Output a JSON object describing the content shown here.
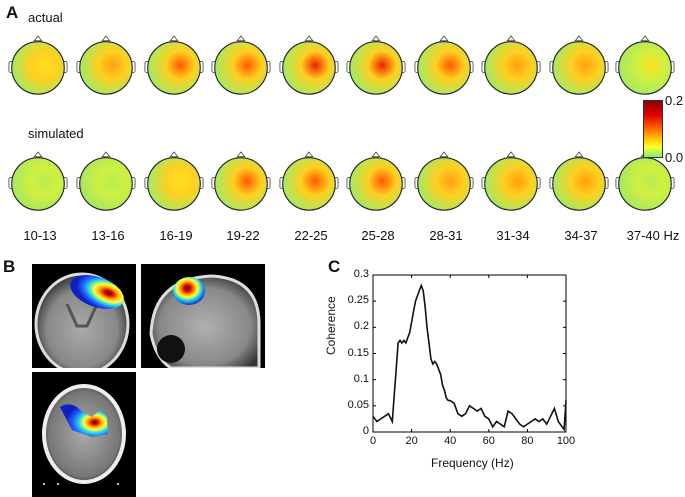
{
  "panels": {
    "A": {
      "letter": "A",
      "row_actual_label": "actual",
      "row_simulated_label": "simulated",
      "frequency_bands": [
        "10-13",
        "13-16",
        "16-19",
        "19-22",
        "22-25",
        "25-28",
        "28-31",
        "31-34",
        "34-37",
        "37-40 Hz"
      ],
      "colorbar": {
        "max_label": "0.2",
        "min_label": "0.0",
        "colors": [
          "#8b0000",
          "#e00000",
          "#ff6a00",
          "#ffd000",
          "#ffff30",
          "#7ff070"
        ]
      },
      "actual_intensity": [
        0.35,
        0.45,
        0.6,
        0.75,
        0.85,
        0.85,
        0.75,
        0.45,
        0.4,
        0.25
      ],
      "simulated_intensity": [
        0.1,
        0.1,
        0.35,
        0.65,
        0.7,
        0.65,
        0.45,
        0.45,
        0.45,
        0.15
      ]
    },
    "B": {
      "letter": "B",
      "views": [
        "coronal",
        "sagittal",
        "axial"
      ]
    },
    "C": {
      "letter": "C"
    }
  },
  "chart_data": [
    {
      "type": "heatmap",
      "title": "EEG coherence topographies (A)",
      "rows": [
        "actual",
        "simulated"
      ],
      "categories": [
        "10-13",
        "13-16",
        "16-19",
        "19-22",
        "22-25",
        "25-28",
        "28-31",
        "31-34",
        "34-37",
        "37-40 Hz"
      ],
      "colorbar_range": [
        0.0,
        0.2
      ]
    },
    {
      "type": "line",
      "title": "",
      "xlabel": "Frequency (Hz)",
      "ylabel": "Coherence",
      "xlim": [
        0,
        100
      ],
      "ylim": [
        0,
        0.3
      ],
      "xticks": [
        "0",
        "20",
        "40",
        "60",
        "80",
        "100"
      ],
      "yticks": [
        "0",
        "0.05",
        "0.1",
        "0.15",
        "0.2",
        "0.25",
        "0.3"
      ],
      "grid": false,
      "x": [
        0,
        2,
        4,
        6,
        8,
        10,
        11,
        12,
        13,
        14,
        15,
        16,
        17,
        18,
        19,
        20,
        21,
        22,
        23,
        24,
        25,
        26,
        27,
        28,
        29,
        30,
        31,
        32,
        33,
        34,
        35,
        36,
        37,
        38,
        39,
        40,
        42,
        44,
        46,
        48,
        50,
        52,
        54,
        56,
        58,
        60,
        62,
        64,
        66,
        68,
        70,
        72,
        74,
        76,
        78,
        80,
        82,
        84,
        86,
        88,
        90,
        92,
        94,
        96,
        98,
        99,
        100
      ],
      "values": [
        0.03,
        0.02,
        0.025,
        0.03,
        0.035,
        0.02,
        0.07,
        0.12,
        0.17,
        0.175,
        0.17,
        0.175,
        0.17,
        0.18,
        0.19,
        0.21,
        0.23,
        0.25,
        0.26,
        0.27,
        0.28,
        0.27,
        0.24,
        0.2,
        0.17,
        0.14,
        0.13,
        0.135,
        0.13,
        0.12,
        0.11,
        0.09,
        0.08,
        0.065,
        0.06,
        0.06,
        0.055,
        0.035,
        0.03,
        0.035,
        0.05,
        0.045,
        0.04,
        0.045,
        0.03,
        0.025,
        0.01,
        0.02,
        0.015,
        0.01,
        0.04,
        0.035,
        0.025,
        0.015,
        0.01,
        0.015,
        0.02,
        0.025,
        0.02,
        0.025,
        0.015,
        0.03,
        0.045,
        0.02,
        0.01,
        0.005,
        0.06
      ]
    }
  ],
  "plot_c": {
    "ylabel": "Coherence",
    "xlabel": "Frequency (Hz)",
    "xticks": [
      "0",
      "20",
      "40",
      "60",
      "80",
      "100"
    ],
    "yticks": [
      "0",
      "0.05",
      "0.1",
      "0.15",
      "0.2",
      "0.25",
      "0.3"
    ]
  }
}
